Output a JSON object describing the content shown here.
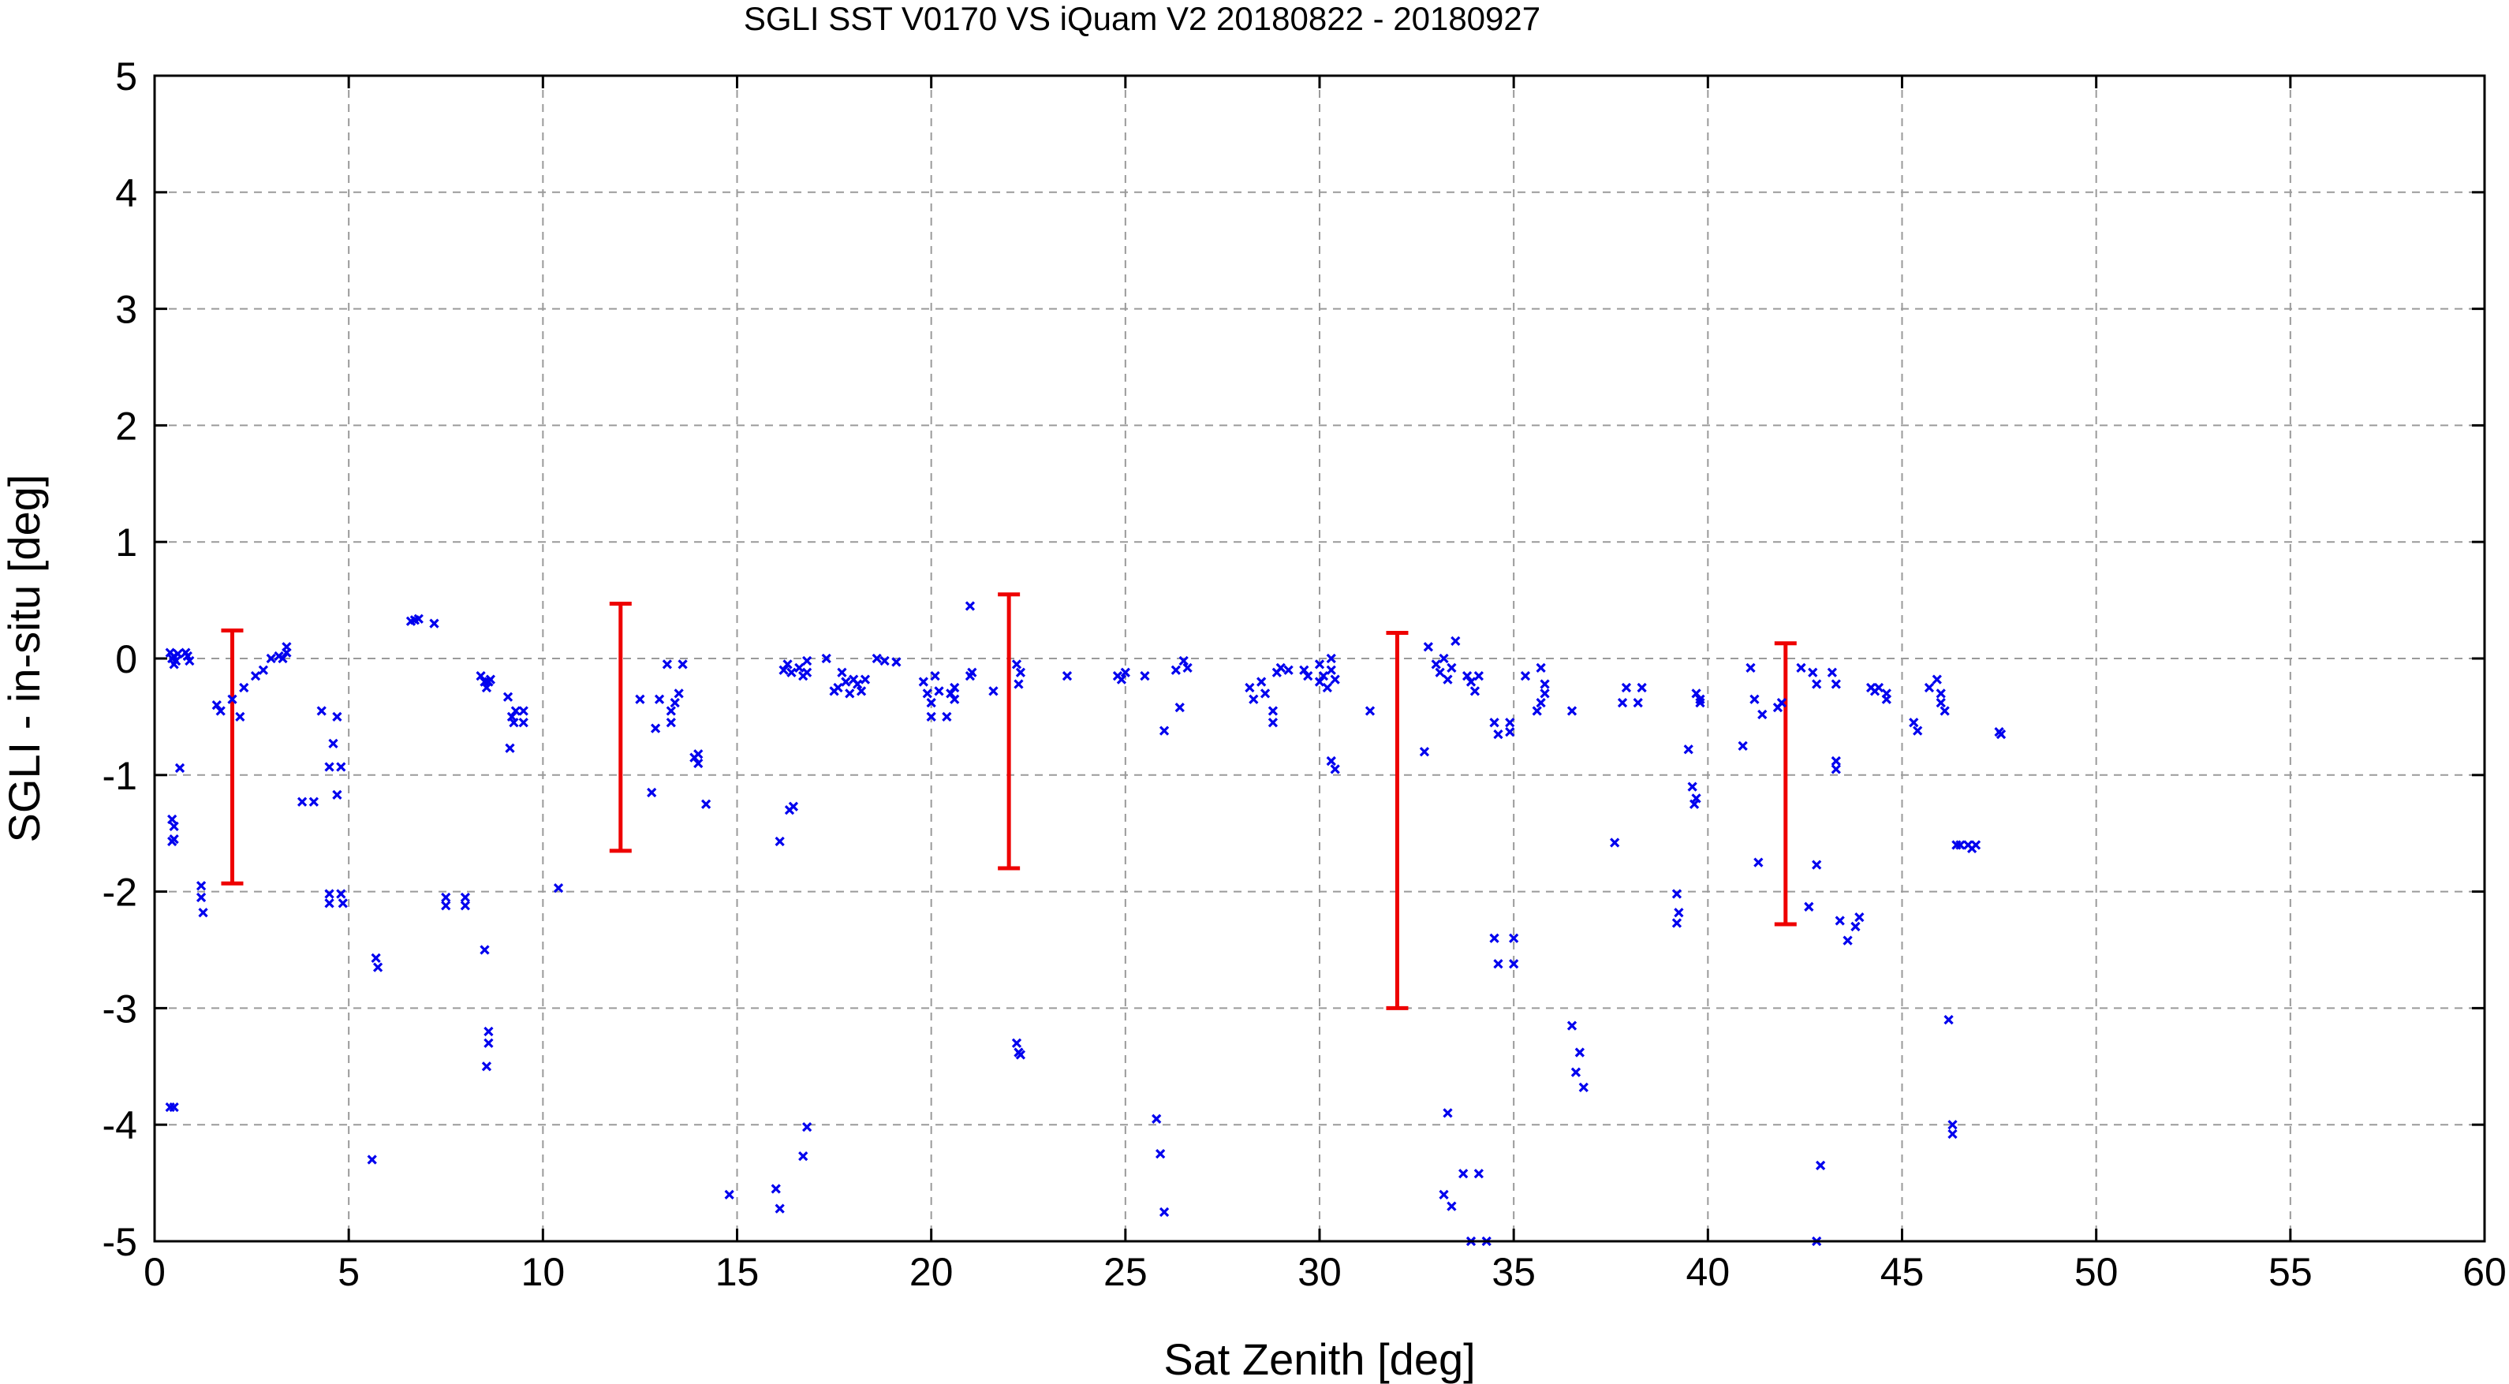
{
  "chart_data": {
    "type": "scatter",
    "title": "SGLI SST V0170 VS iQuam V2 20180822 - 20180927",
    "xlabel": "Sat Zenith [deg]",
    "ylabel": "SGLI - in-situ [deg]",
    "xlim": [
      0,
      60
    ],
    "ylim": [
      -5,
      5
    ],
    "grid": true,
    "xticks": [
      "0",
      "5",
      "10",
      "15",
      "20",
      "25",
      "30",
      "35",
      "40",
      "45",
      "50",
      "55",
      "60"
    ],
    "yticks": [
      "-5",
      "-4",
      "-3",
      "-2",
      "-1",
      "0",
      "1",
      "2",
      "3",
      "4",
      "5"
    ],
    "colors": {
      "points": "#0000ee",
      "error_bars": "#ee0000"
    },
    "series": [
      {
        "marker": "x",
        "color": "#0000ee",
        "points": [
          [
            0.4,
            0.05
          ],
          [
            0.45,
            0.0
          ],
          [
            0.5,
            -0.05
          ],
          [
            0.5,
            0.02
          ],
          [
            0.55,
            -0.02
          ],
          [
            0.6,
            0.04
          ],
          [
            0.8,
            0.05
          ],
          [
            0.85,
            0.02
          ],
          [
            0.9,
            -0.02
          ],
          [
            0.45,
            -1.38
          ],
          [
            0.5,
            -1.44
          ],
          [
            0.45,
            -1.57
          ],
          [
            0.5,
            -1.55
          ],
          [
            0.65,
            -0.94
          ],
          [
            0.4,
            -3.85
          ],
          [
            0.5,
            -3.85
          ],
          [
            1.2,
            -1.95
          ],
          [
            1.2,
            -2.05
          ],
          [
            1.25,
            -2.18
          ],
          [
            1.6,
            -0.4
          ],
          [
            1.7,
            -0.45
          ],
          [
            2.0,
            -0.35
          ],
          [
            2.2,
            -0.5
          ],
          [
            2.3,
            -0.25
          ],
          [
            2.6,
            -0.15
          ],
          [
            2.8,
            -0.1
          ],
          [
            3.0,
            0.0
          ],
          [
            3.2,
            0.02
          ],
          [
            3.4,
            0.05
          ],
          [
            3.4,
            0.1
          ],
          [
            3.3,
            0.0
          ],
          [
            3.8,
            -1.23
          ],
          [
            4.1,
            -1.23
          ],
          [
            4.3,
            -0.45
          ],
          [
            4.5,
            -0.93
          ],
          [
            4.6,
            -0.73
          ],
          [
            4.7,
            -0.5
          ],
          [
            4.8,
            -0.93
          ],
          [
            4.7,
            -1.17
          ],
          [
            4.5,
            -2.02
          ],
          [
            4.5,
            -2.1
          ],
          [
            4.8,
            -2.02
          ],
          [
            4.85,
            -2.1
          ],
          [
            5.6,
            -4.3
          ],
          [
            5.7,
            -2.57
          ],
          [
            5.75,
            -2.65
          ],
          [
            6.6,
            0.32
          ],
          [
            6.7,
            0.33
          ],
          [
            6.8,
            0.34
          ],
          [
            7.2,
            0.3
          ],
          [
            7.5,
            -2.05
          ],
          [
            7.5,
            -2.12
          ],
          [
            8.0,
            -2.05
          ],
          [
            8.0,
            -2.12
          ],
          [
            8.4,
            -0.15
          ],
          [
            8.5,
            -0.2
          ],
          [
            8.55,
            -0.25
          ],
          [
            8.6,
            -0.2
          ],
          [
            8.65,
            -0.18
          ],
          [
            8.5,
            -2.5
          ],
          [
            8.6,
            -3.2
          ],
          [
            8.6,
            -3.3
          ],
          [
            8.55,
            -3.5
          ],
          [
            9.1,
            -0.33
          ],
          [
            9.2,
            -0.5
          ],
          [
            9.3,
            -0.45
          ],
          [
            9.25,
            -0.55
          ],
          [
            9.5,
            -0.45
          ],
          [
            9.5,
            -0.55
          ],
          [
            9.15,
            -0.77
          ],
          [
            10.4,
            -1.97
          ],
          [
            12.5,
            -0.35
          ],
          [
            12.8,
            -1.15
          ],
          [
            12.9,
            -0.6
          ],
          [
            13.0,
            -0.35
          ],
          [
            13.2,
            -0.05
          ],
          [
            13.3,
            -0.45
          ],
          [
            13.3,
            -0.55
          ],
          [
            13.4,
            -0.38
          ],
          [
            13.5,
            -0.3
          ],
          [
            13.6,
            -0.05
          ],
          [
            13.9,
            -0.85
          ],
          [
            14.0,
            -0.82
          ],
          [
            14.0,
            -0.9
          ],
          [
            14.2,
            -1.25
          ],
          [
            14.8,
            -4.6
          ],
          [
            16.0,
            -4.55
          ],
          [
            16.1,
            -4.72
          ],
          [
            16.1,
            -1.57
          ],
          [
            16.2,
            -0.1
          ],
          [
            16.3,
            -0.05
          ],
          [
            16.4,
            -0.12
          ],
          [
            16.35,
            -1.3
          ],
          [
            16.45,
            -1.27
          ],
          [
            16.6,
            -0.08
          ],
          [
            16.7,
            -0.15
          ],
          [
            16.8,
            -0.02
          ],
          [
            16.8,
            -0.12
          ],
          [
            16.7,
            -4.27
          ],
          [
            16.8,
            -4.02
          ],
          [
            17.3,
            -0.0
          ],
          [
            17.5,
            -0.28
          ],
          [
            17.6,
            -0.25
          ],
          [
            17.7,
            -0.12
          ],
          [
            17.8,
            -0.2
          ],
          [
            17.9,
            -0.3
          ],
          [
            18.0,
            -0.18
          ],
          [
            18.1,
            -0.22
          ],
          [
            18.2,
            -0.28
          ],
          [
            18.3,
            -0.18
          ],
          [
            18.6,
            -0.0
          ],
          [
            18.8,
            -0.02
          ],
          [
            19.1,
            -0.03
          ],
          [
            19.8,
            -0.2
          ],
          [
            19.9,
            -0.3
          ],
          [
            20.0,
            -0.5
          ],
          [
            20.0,
            -0.38
          ],
          [
            20.1,
            -0.15
          ],
          [
            20.2,
            -0.28
          ],
          [
            20.4,
            -0.5
          ],
          [
            20.5,
            -0.3
          ],
          [
            20.6,
            -0.35
          ],
          [
            20.6,
            -0.25
          ],
          [
            21.0,
            -0.15
          ],
          [
            21.05,
            -0.12
          ],
          [
            21.0,
            0.45
          ],
          [
            21.6,
            -0.28
          ],
          [
            22.2,
            -0.05
          ],
          [
            22.3,
            -0.12
          ],
          [
            22.25,
            -0.22
          ],
          [
            22.2,
            -3.3
          ],
          [
            22.25,
            -3.38
          ],
          [
            22.3,
            -3.4
          ],
          [
            23.5,
            -0.15
          ],
          [
            24.8,
            -0.15
          ],
          [
            24.9,
            -0.18
          ],
          [
            25.0,
            -0.12
          ],
          [
            25.5,
            -0.15
          ],
          [
            25.8,
            -3.95
          ],
          [
            25.9,
            -4.25
          ],
          [
            26.0,
            -4.75
          ],
          [
            26.0,
            -0.62
          ],
          [
            26.3,
            -0.1
          ],
          [
            26.4,
            -0.42
          ],
          [
            26.5,
            -0.02
          ],
          [
            26.6,
            -0.08
          ],
          [
            28.2,
            -0.25
          ],
          [
            28.3,
            -0.35
          ],
          [
            28.5,
            -0.2
          ],
          [
            28.6,
            -0.3
          ],
          [
            28.8,
            -0.45
          ],
          [
            28.8,
            -0.55
          ],
          [
            28.9,
            -0.12
          ],
          [
            29.0,
            -0.08
          ],
          [
            29.2,
            -0.1
          ],
          [
            29.6,
            -0.1
          ],
          [
            29.7,
            -0.15
          ],
          [
            30.0,
            -0.05
          ],
          [
            30.0,
            -0.2
          ],
          [
            30.1,
            -0.15
          ],
          [
            30.2,
            -0.25
          ],
          [
            30.3,
            0.0
          ],
          [
            30.3,
            -0.1
          ],
          [
            30.4,
            -0.18
          ],
          [
            30.3,
            -0.88
          ],
          [
            30.4,
            -0.95
          ],
          [
            31.3,
            -0.45
          ],
          [
            32.7,
            -0.8
          ],
          [
            32.8,
            0.1
          ],
          [
            33.0,
            -0.05
          ],
          [
            33.1,
            -0.12
          ],
          [
            33.2,
            -0.0
          ],
          [
            33.3,
            -0.18
          ],
          [
            33.4,
            -0.08
          ],
          [
            33.5,
            0.15
          ],
          [
            33.8,
            -0.15
          ],
          [
            33.9,
            -0.2
          ],
          [
            34.0,
            -0.28
          ],
          [
            34.1,
            -0.15
          ],
          [
            33.2,
            -4.6
          ],
          [
            33.3,
            -3.9
          ],
          [
            33.4,
            -4.7
          ],
          [
            33.7,
            -4.42
          ],
          [
            34.1,
            -4.42
          ],
          [
            33.9,
            -5.0
          ],
          [
            34.3,
            -5.0
          ],
          [
            34.5,
            -0.55
          ],
          [
            34.6,
            -0.65
          ],
          [
            34.5,
            -2.4
          ],
          [
            34.6,
            -2.62
          ],
          [
            34.9,
            -0.55
          ],
          [
            34.9,
            -0.63
          ],
          [
            35.0,
            -2.4
          ],
          [
            35.0,
            -2.62
          ],
          [
            35.3,
            -0.15
          ],
          [
            35.6,
            -0.45
          ],
          [
            35.7,
            -0.38
          ],
          [
            35.7,
            -0.08
          ],
          [
            35.8,
            -0.3
          ],
          [
            35.8,
            -0.22
          ],
          [
            36.5,
            -0.45
          ],
          [
            36.5,
            -3.15
          ],
          [
            36.6,
            -3.55
          ],
          [
            36.7,
            -3.38
          ],
          [
            36.8,
            -3.68
          ],
          [
            37.6,
            -1.58
          ],
          [
            37.8,
            -0.38
          ],
          [
            37.9,
            -0.25
          ],
          [
            38.2,
            -0.38
          ],
          [
            38.3,
            -0.25
          ],
          [
            39.2,
            -2.02
          ],
          [
            39.25,
            -2.18
          ],
          [
            39.2,
            -2.27
          ],
          [
            39.5,
            -0.78
          ],
          [
            39.6,
            -1.1
          ],
          [
            39.7,
            -1.2
          ],
          [
            39.65,
            -1.25
          ],
          [
            39.7,
            -0.3
          ],
          [
            39.8,
            -0.38
          ],
          [
            39.8,
            -0.35
          ],
          [
            40.9,
            -0.75
          ],
          [
            41.1,
            -0.08
          ],
          [
            41.2,
            -0.35
          ],
          [
            41.3,
            -1.75
          ],
          [
            41.4,
            -0.48
          ],
          [
            41.8,
            -0.42
          ],
          [
            41.9,
            -0.38
          ],
          [
            42.4,
            -0.08
          ],
          [
            42.6,
            -2.13
          ],
          [
            42.7,
            -0.12
          ],
          [
            42.8,
            -0.22
          ],
          [
            42.8,
            -1.77
          ],
          [
            42.9,
            -4.35
          ],
          [
            42.8,
            -5.0
          ],
          [
            43.2,
            -0.12
          ],
          [
            43.3,
            -0.22
          ],
          [
            43.3,
            -0.88
          ],
          [
            43.3,
            -0.95
          ],
          [
            43.4,
            -2.25
          ],
          [
            43.6,
            -2.42
          ],
          [
            43.8,
            -2.3
          ],
          [
            43.9,
            -2.22
          ],
          [
            44.2,
            -0.25
          ],
          [
            44.3,
            -0.28
          ],
          [
            44.4,
            -0.25
          ],
          [
            44.6,
            -0.3
          ],
          [
            44.6,
            -0.35
          ],
          [
            45.3,
            -0.55
          ],
          [
            45.4,
            -0.62
          ],
          [
            45.7,
            -0.25
          ],
          [
            45.9,
            -0.18
          ],
          [
            46.0,
            -0.3
          ],
          [
            46.0,
            -0.38
          ],
          [
            46.1,
            -0.45
          ],
          [
            46.2,
            -3.1
          ],
          [
            46.3,
            -4.0
          ],
          [
            46.3,
            -4.08
          ],
          [
            46.4,
            -1.6
          ],
          [
            46.5,
            -1.6
          ],
          [
            46.7,
            -1.6
          ],
          [
            46.8,
            -1.63
          ],
          [
            46.9,
            -1.6
          ],
          [
            47.5,
            -0.63
          ],
          [
            47.55,
            -0.65
          ]
        ]
      },
      {
        "type": "error_bars",
        "color": "#ee0000",
        "bars": [
          {
            "x": 2,
            "low": -1.93,
            "high": 0.24
          },
          {
            "x": 12,
            "low": -1.65,
            "high": 0.47
          },
          {
            "x": 22,
            "low": -1.8,
            "high": 0.55
          },
          {
            "x": 32,
            "low": -3.0,
            "high": 0.22
          },
          {
            "x": 42,
            "low": -2.28,
            "high": 0.13
          }
        ]
      }
    ]
  }
}
